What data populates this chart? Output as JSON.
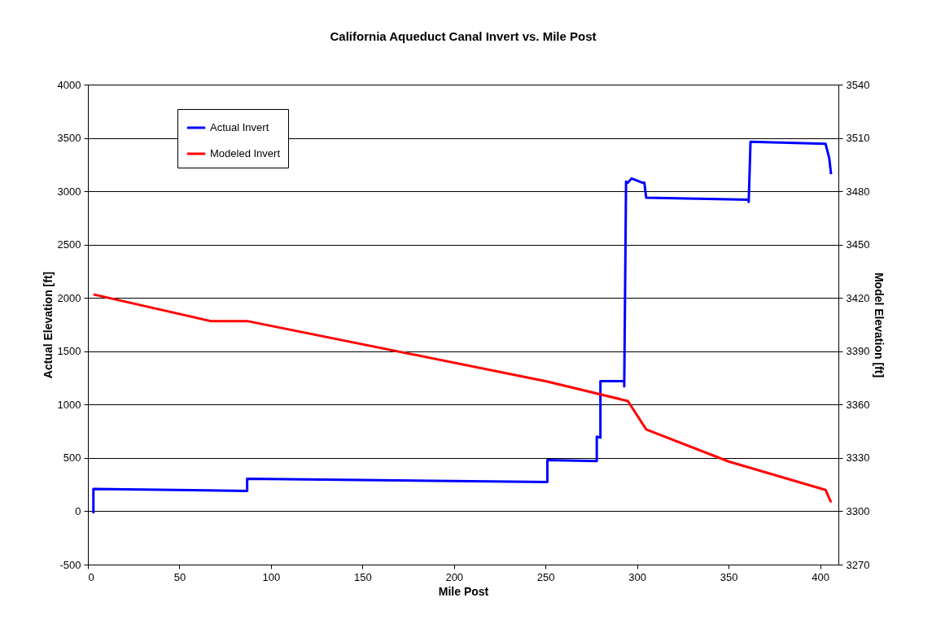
{
  "chart_data": {
    "type": "line",
    "title": "California Aqueduct Canal Invert vs. Mile Post",
    "xlabel": "Mile Post",
    "ylabel": "Actual Elevation [ft]",
    "y2label": "Model Elevation [ft]",
    "xlim": [
      0,
      410
    ],
    "xticks": [
      0,
      50,
      100,
      150,
      200,
      250,
      300,
      350,
      400
    ],
    "ylim": [
      -500,
      4000
    ],
    "yticks": [
      -500,
      0,
      500,
      1000,
      1500,
      2000,
      2500,
      3000,
      3500,
      4000
    ],
    "y2lim": [
      3270,
      3540
    ],
    "y2ticks": [
      3270,
      3300,
      3330,
      3360,
      3390,
      3420,
      3450,
      3480,
      3510,
      3540
    ],
    "grid": "y",
    "legend": "top left",
    "marker": "none",
    "line_style": "solid",
    "series": [
      {
        "name": "Actual Invert",
        "color": "#0000ff",
        "x": [
          3,
          3,
          87,
          87,
          251,
          251,
          278,
          278,
          280,
          280,
          293,
          293,
          294,
          295,
          297,
          303,
          304,
          305,
          361,
          361,
          362,
          403,
          405,
          406
        ],
        "values": [
          -20,
          210,
          190,
          305,
          275,
          480,
          470,
          700,
          690,
          1220,
          1220,
          1170,
          3090,
          3080,
          3120,
          3080,
          3080,
          2940,
          2920,
          2900,
          3465,
          3445,
          3310,
          3160
        ]
      },
      {
        "name": "Modeled Invert",
        "color": "#ff0000",
        "axis": "y2",
        "x": [
          3,
          67,
          87,
          251,
          295,
          305,
          350,
          403,
          406
        ],
        "values": [
          3422,
          3407,
          3407,
          3373,
          3362,
          3346,
          3328,
          3312,
          3305
        ]
      }
    ]
  }
}
